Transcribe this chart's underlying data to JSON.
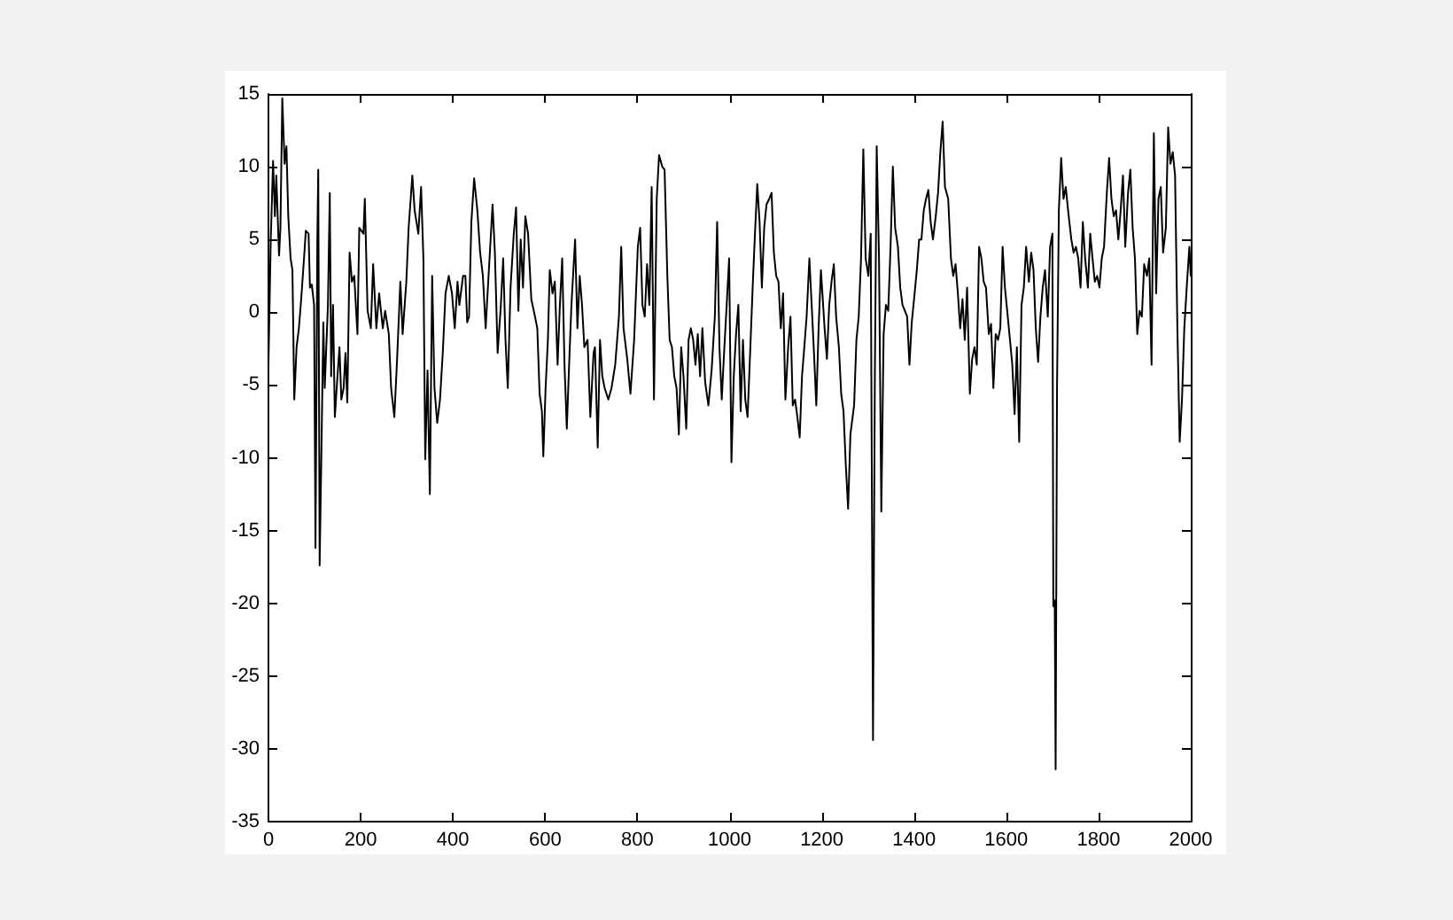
{
  "chart_data": {
    "type": "line",
    "color": "#000000",
    "marker": "none",
    "line_style": "solid",
    "xlim": [
      0,
      2000
    ],
    "ylim": [
      -35,
      15
    ],
    "xticks": [
      0,
      200,
      400,
      600,
      800,
      1000,
      1200,
      1400,
      1600,
      1800,
      2000
    ],
    "yticks": [
      -35,
      -30,
      -25,
      -20,
      -15,
      -10,
      -5,
      0,
      5,
      10,
      15
    ],
    "x": [
      0,
      5,
      10,
      14,
      17,
      23,
      26,
      30,
      35,
      39,
      43,
      48,
      52,
      56,
      61,
      66,
      71,
      78,
      81,
      87,
      90,
      94,
      99,
      102,
      106,
      108,
      111,
      115,
      119,
      122,
      129,
      133,
      136,
      140,
      144,
      148,
      154,
      158,
      163,
      167,
      171,
      176,
      181,
      186,
      193,
      197,
      206,
      209,
      215,
      222,
      227,
      234,
      240,
      248,
      253,
      261,
      266,
      273,
      279,
      286,
      291,
      299,
      304,
      312,
      317,
      325,
      331,
      336,
      340,
      345,
      350,
      355,
      360,
      366,
      372,
      378,
      384,
      391,
      398,
      404,
      410,
      414,
      422,
      427,
      431,
      435,
      440,
      446,
      453,
      459,
      465,
      471,
      478,
      486,
      491,
      497,
      504,
      509,
      514,
      519,
      525,
      532,
      537,
      542,
      547,
      552,
      557,
      563,
      570,
      578,
      583,
      588,
      593,
      596,
      601,
      606,
      610,
      616,
      621,
      627,
      632,
      637,
      642,
      647,
      652,
      657,
      665,
      670,
      675,
      680,
      685,
      692,
      698,
      705,
      708,
      714,
      719,
      724,
      729,
      737,
      744,
      752,
      760,
      765,
      770,
      778,
      785,
      793,
      801,
      806,
      811,
      816,
      821,
      826,
      831,
      836,
      842,
      847,
      854,
      859,
      865,
      870,
      875,
      880,
      885,
      890,
      895,
      900,
      906,
      911,
      916,
      921,
      926,
      931,
      936,
      941,
      947,
      954,
      961,
      968,
      973,
      978,
      983,
      988,
      993,
      999,
      1004,
      1009,
      1014,
      1019,
      1024,
      1029,
      1034,
      1039,
      1045,
      1050,
      1055,
      1060,
      1065,
      1070,
      1075,
      1080,
      1086,
      1091,
      1096,
      1101,
      1106,
      1111,
      1116,
      1121,
      1127,
      1132,
      1137,
      1142,
      1147,
      1152,
      1157,
      1162,
      1167,
      1173,
      1178,
      1183,
      1188,
      1193,
      1198,
      1206,
      1211,
      1216,
      1221,
      1226,
      1231,
      1237,
      1242,
      1247,
      1252,
      1257,
      1262,
      1270,
      1275,
      1280,
      1285,
      1290,
      1295,
      1301,
      1306,
      1311,
      1315,
      1319,
      1324,
      1329,
      1334,
      1339,
      1344,
      1349,
      1354,
      1359,
      1365,
      1370,
      1375,
      1380,
      1385,
      1390,
      1395,
      1400,
      1406,
      1411,
      1416,
      1421,
      1426,
      1431,
      1436,
      1441,
      1447,
      1452,
      1457,
      1462,
      1467,
      1474,
      1480,
      1485,
      1490,
      1495,
      1500,
      1505,
      1510,
      1515,
      1521,
      1526,
      1531,
      1536,
      1541,
      1546,
      1551,
      1556,
      1562,
      1567,
      1572,
      1577,
      1582,
      1587,
      1592,
      1597,
      1602,
      1608,
      1613,
      1618,
      1623,
      1628,
      1633,
      1638,
      1643,
      1649,
      1654,
      1659,
      1664,
      1669,
      1674,
      1679,
      1684,
      1690,
      1695,
      1700,
      1702,
      1705,
      1707,
      1710,
      1714,
      1719,
      1724,
      1729,
      1734,
      1741,
      1746,
      1751,
      1756,
      1761,
      1766,
      1771,
      1777,
      1782,
      1787,
      1792,
      1797,
      1802,
      1807,
      1812,
      1818,
      1823,
      1828,
      1833,
      1838,
      1843,
      1848,
      1853,
      1858,
      1864,
      1869,
      1874,
      1879,
      1884,
      1889,
      1894,
      1899,
      1905,
      1910,
      1915,
      1920,
      1925,
      1930,
      1935,
      1940,
      1946,
      1951,
      1956,
      1961,
      1966,
      1971,
      1976,
      1981,
      1986,
      1992,
      1997,
      2000
    ],
    "values": [
      -3.6,
      5.0,
      10.4,
      6.6,
      9.4,
      3.9,
      5.8,
      14.7,
      10.2,
      11.4,
      6.6,
      3.7,
      2.9,
      -6.0,
      -2.4,
      -1.1,
      0.9,
      4.1,
      5.6,
      5.4,
      1.7,
      1.9,
      0.5,
      -16.2,
      5.0,
      9.8,
      -17.4,
      -9.3,
      -0.7,
      -5.2,
      0.5,
      8.2,
      -4.4,
      0.5,
      -7.2,
      -5.2,
      -2.4,
      -6.0,
      -5.2,
      -2.8,
      -6.2,
      4.1,
      2.1,
      2.5,
      -1.5,
      5.8,
      5.4,
      7.8,
      0.1,
      -1.1,
      3.3,
      -1.1,
      1.3,
      -1.1,
      0.1,
      -1.5,
      -5.2,
      -7.2,
      -3.2,
      2.1,
      -1.5,
      2.1,
      5.8,
      9.4,
      7.0,
      5.4,
      8.6,
      3.7,
      -10.1,
      -4.0,
      -12.5,
      2.5,
      -5.2,
      -7.6,
      -6.0,
      -2.8,
      1.3,
      2.5,
      1.3,
      -1.1,
      2.1,
      0.5,
      2.5,
      2.5,
      -0.7,
      -0.3,
      6.2,
      9.2,
      7.0,
      4.1,
      2.5,
      -1.1,
      2.9,
      7.4,
      4.1,
      -2.8,
      0.5,
      3.7,
      -1.9,
      -5.2,
      1.7,
      5.4,
      7.2,
      0.1,
      5.0,
      1.7,
      6.6,
      5.4,
      0.9,
      -0.3,
      -1.1,
      -5.6,
      -6.8,
      -9.9,
      -5.2,
      -1.9,
      2.9,
      1.3,
      2.1,
      -3.6,
      0.5,
      3.7,
      -3.6,
      -8.0,
      -3.6,
      0.5,
      5.0,
      -1.1,
      2.5,
      0.5,
      -2.4,
      -1.9,
      -7.2,
      -2.8,
      -2.4,
      -9.3,
      -1.9,
      -4.4,
      -5.2,
      -6.0,
      -5.2,
      -3.6,
      -0.3,
      4.5,
      -1.1,
      -3.2,
      -5.6,
      -1.9,
      4.5,
      5.8,
      0.5,
      -0.3,
      3.3,
      0.5,
      8.6,
      -6.0,
      7.8,
      10.8,
      10.0,
      9.8,
      2.5,
      -1.9,
      -2.4,
      -4.4,
      -5.2,
      -8.4,
      -2.4,
      -4.4,
      -8.0,
      -1.9,
      -1.1,
      -1.9,
      -3.6,
      -1.5,
      -4.4,
      -1.1,
      -4.8,
      -6.4,
      -4.0,
      -0.3,
      6.2,
      -2.4,
      -6.0,
      -2.8,
      0.1,
      3.7,
      -10.3,
      -4.4,
      -1.5,
      0.5,
      -6.8,
      -1.9,
      -6.0,
      -7.2,
      -2.4,
      1.7,
      5.4,
      8.8,
      6.2,
      1.7,
      5.8,
      7.4,
      7.8,
      8.2,
      4.1,
      2.5,
      2.1,
      -1.1,
      1.3,
      -6.0,
      -2.4,
      -0.3,
      -6.4,
      -6.0,
      -7.2,
      -8.6,
      -4.4,
      -2.4,
      -0.3,
      3.7,
      0.5,
      -2.8,
      -6.4,
      -1.1,
      2.9,
      -1.1,
      -3.2,
      0.5,
      2.1,
      3.3,
      -0.3,
      -2.4,
      -5.6,
      -6.8,
      -10.5,
      -13.5,
      -8.4,
      -6.4,
      -1.9,
      -0.3,
      3.7,
      11.2,
      3.7,
      2.5,
      5.4,
      -29.4,
      -4.4,
      11.4,
      3.7,
      -13.7,
      -1.5,
      0.5,
      0.1,
      4.5,
      10.0,
      5.8,
      4.5,
      1.7,
      0.5,
      0.1,
      -0.3,
      -3.6,
      -0.7,
      0.9,
      2.9,
      5.0,
      5.0,
      7.0,
      7.8,
      8.4,
      6.2,
      5.0,
      6.6,
      8.2,
      11.0,
      13.1,
      8.6,
      7.8,
      3.7,
      2.5,
      3.3,
      1.3,
      -1.1,
      0.9,
      -1.9,
      1.7,
      -5.6,
      -3.2,
      -2.4,
      -3.6,
      4.5,
      3.7,
      2.1,
      1.7,
      -1.5,
      -0.8,
      -5.2,
      -1.5,
      -1.9,
      -1.1,
      4.5,
      1.7,
      0.1,
      -1.9,
      -3.6,
      -7.0,
      -2.4,
      -8.9,
      0.5,
      1.7,
      4.5,
      2.1,
      4.1,
      2.9,
      -1.1,
      -3.4,
      -0.3,
      1.7,
      2.9,
      -0.3,
      4.5,
      5.4,
      -20.2,
      -19.8,
      -31.4,
      -5.2,
      7.0,
      10.6,
      7.8,
      8.6,
      7.0,
      5.0,
      4.1,
      4.5,
      3.7,
      1.7,
      6.2,
      3.7,
      1.7,
      5.4,
      3.7,
      2.1,
      2.5,
      1.7,
      3.7,
      4.5,
      8.2,
      10.6,
      7.8,
      6.6,
      7.0,
      5.0,
      7.0,
      9.4,
      4.5,
      8.2,
      9.8,
      5.8,
      3.7,
      -1.5,
      0.1,
      -0.3,
      3.3,
      2.5,
      3.7,
      -3.6,
      12.3,
      1.3,
      7.8,
      8.6,
      4.1,
      5.8,
      12.7,
      10.2,
      11.0,
      9.4,
      -1.1,
      -8.9,
      -6.0,
      -1.1,
      2.1,
      4.5,
      2.5
    ]
  }
}
